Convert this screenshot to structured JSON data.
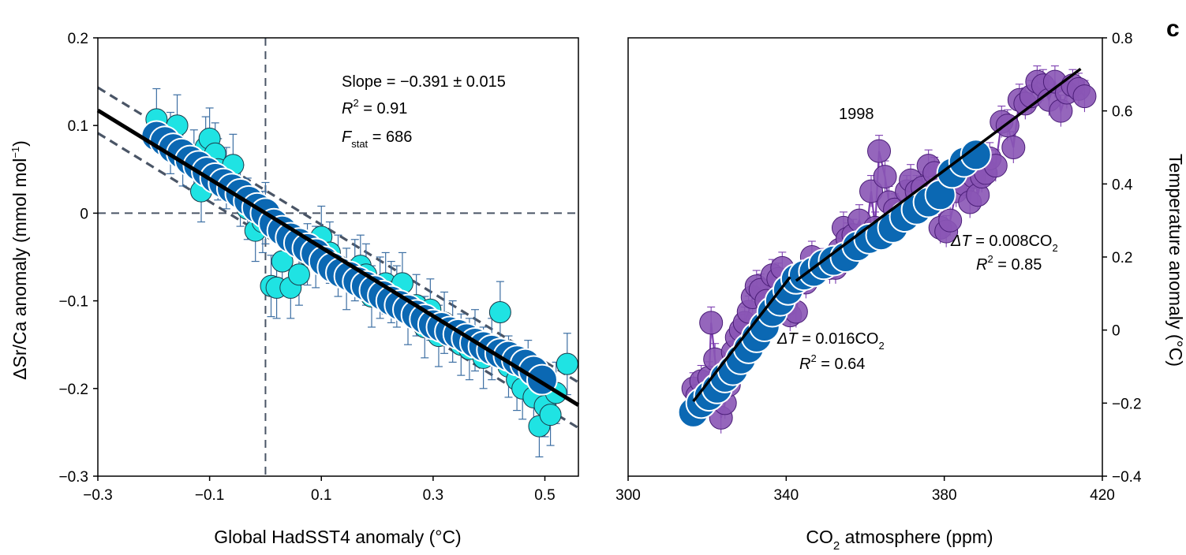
{
  "panel_label": "c",
  "colors": {
    "blue": "#0b68b3",
    "cyan": "#1fe3e3",
    "purple": "#8a55b5",
    "purple_line": "#7c3db0",
    "errorbar_blue": "#3d6fa3",
    "dash": "#4a5566",
    "fit": "#000000"
  },
  "chart_data": [
    {
      "type": "scatter",
      "xlabel": "Global HadSST4 anomaly (°C)",
      "ylabel": "ΔSr/Ca anomaly (mmol mol⁻¹)",
      "ylabel_parts": {
        "main": "ΔSr/Ca anomaly (mmol mol",
        "sup": "−1",
        "end": ")"
      },
      "xlim": [
        -0.3,
        0.56
      ],
      "ylim": [
        -0.3,
        0.2
      ],
      "xticks": [
        -0.3,
        -0.1,
        0.1,
        0.3,
        0.5
      ],
      "xtick_labels": [
        "−0.3",
        "−0.1",
        "0.1",
        "0.3",
        "0.5"
      ],
      "yticks": [
        -0.3,
        -0.2,
        -0.1,
        0,
        0.1,
        0.2
      ],
      "ytick_labels": [
        "−0.3",
        "−0.2",
        "−0.1",
        "0",
        "0.1",
        "0.2"
      ],
      "reference_lines": {
        "x": 0,
        "y": 0
      },
      "annotations": {
        "slope": "Slope = −0.391 ± 0.015",
        "r2_prefix": "R",
        "r2_sup": "2",
        "r2_value": " = 0.91",
        "f_prefix": "F",
        "f_sub": "stat",
        "f_value": " = 686"
      },
      "fit": {
        "slope": -0.391,
        "intercept": 0.0,
        "x_range": [
          -0.3,
          0.56
        ]
      },
      "confidence_band_offset": 0.026,
      "series": [
        {
          "name": "annual",
          "x": [
            -0.195,
            -0.17,
            -0.158,
            -0.148,
            -0.128,
            -0.115,
            -0.107,
            -0.1,
            -0.09,
            -0.085,
            -0.07,
            -0.058,
            -0.045,
            -0.032,
            -0.018,
            -0.005,
            0.0,
            0.01,
            0.02,
            0.03,
            0.045,
            0.06,
            0.075,
            0.09,
            0.1,
            0.115,
            0.13,
            0.145,
            0.16,
            0.17,
            0.18,
            0.19,
            0.205,
            0.215,
            0.225,
            0.235,
            0.245,
            0.255,
            0.27,
            0.285,
            0.295,
            0.31,
            0.32,
            0.335,
            0.35,
            0.365,
            0.375,
            0.39,
            0.405,
            0.42,
            0.435,
            0.45,
            0.46,
            0.47,
            0.48,
            0.49,
            0.5,
            0.51,
            0.52,
            0.54
          ],
          "y": [
            0.107,
            0.08,
            0.1,
            0.066,
            0.06,
            0.025,
            0.075,
            0.085,
            0.068,
            0.05,
            0.04,
            0.055,
            0.02,
            0.005,
            -0.02,
            -0.01,
            0.0,
            -0.083,
            -0.085,
            -0.055,
            -0.085,
            -0.07,
            -0.047,
            -0.05,
            -0.027,
            -0.045,
            -0.06,
            -0.075,
            -0.065,
            -0.06,
            -0.07,
            -0.095,
            -0.085,
            -0.08,
            -0.09,
            -0.095,
            -0.08,
            -0.115,
            -0.105,
            -0.13,
            -0.11,
            -0.14,
            -0.125,
            -0.135,
            -0.15,
            -0.155,
            -0.145,
            -0.165,
            -0.155,
            -0.113,
            -0.175,
            -0.19,
            -0.2,
            -0.18,
            -0.21,
            -0.243,
            -0.22,
            -0.23,
            -0.205,
            -0.172
          ],
          "err": 0.035
        },
        {
          "name": "smoothed",
          "x": [
            -0.195,
            -0.18,
            -0.165,
            -0.15,
            -0.135,
            -0.12,
            -0.105,
            -0.09,
            -0.075,
            -0.06,
            -0.045,
            -0.03,
            -0.015,
            0.0,
            0.015,
            0.03,
            0.045,
            0.06,
            0.075,
            0.09,
            0.105,
            0.12,
            0.135,
            0.15,
            0.165,
            0.18,
            0.195,
            0.21,
            0.225,
            0.24,
            0.255,
            0.27,
            0.285,
            0.3,
            0.315,
            0.33,
            0.345,
            0.36,
            0.375,
            0.39,
            0.405,
            0.42,
            0.435,
            0.45,
            0.465,
            0.48,
            0.495
          ],
          "y": [
            0.088,
            0.082,
            0.074,
            0.068,
            0.06,
            0.054,
            0.047,
            0.04,
            0.034,
            0.028,
            0.022,
            0.014,
            0.006,
            0.0,
            -0.012,
            -0.02,
            -0.028,
            -0.034,
            -0.04,
            -0.046,
            -0.055,
            -0.062,
            -0.068,
            -0.072,
            -0.078,
            -0.083,
            -0.088,
            -0.094,
            -0.1,
            -0.105,
            -0.11,
            -0.116,
            -0.121,
            -0.127,
            -0.13,
            -0.135,
            -0.138,
            -0.143,
            -0.148,
            -0.152,
            -0.156,
            -0.16,
            -0.163,
            -0.168,
            -0.172,
            -0.18,
            -0.19
          ]
        }
      ]
    },
    {
      "type": "scatter",
      "xlabel_parts": {
        "pre": "CO",
        "sub": "2",
        "post": " atmosphere (ppm)"
      },
      "xlabel": "CO2 atmosphere (ppm)",
      "ylabel": "Temperature anomaly (°C)",
      "xlim": [
        300,
        420
      ],
      "ylim": [
        -0.4,
        0.8
      ],
      "xticks": [
        300,
        340,
        380,
        420
      ],
      "xtick_labels": [
        "300",
        "340",
        "380",
        "420"
      ],
      "yticks": [
        -0.4,
        -0.2,
        0,
        0.2,
        0.4,
        0.6,
        0.8
      ],
      "ytick_labels": [
        "−0.4",
        "−0.2",
        "0",
        "0.2",
        "0.4",
        "0.6",
        "0.8"
      ],
      "annotations": {
        "year_1998": "1998",
        "fit_low": {
          "prefix": "ΔT",
          "eq": " = 0.016CO",
          "sub": "2",
          "r2_prefix": "R",
          "r2_sup": "2",
          "r2_value": " = 0.64"
        },
        "fit_high": {
          "prefix": "ΔT",
          "eq": " = 0.008CO",
          "sub": "2",
          "r2_prefix": "R",
          "r2_sup": "2",
          "r2_value": " = 0.85"
        }
      },
      "fit_segments": [
        {
          "x": [
            316.5,
            341
          ],
          "y": [
            -0.195,
            0.145
          ]
        },
        {
          "x": [
            342.5,
            414.5
          ],
          "y": [
            0.135,
            0.715
          ]
        }
      ],
      "series": [
        {
          "name": "annual",
          "x": [
            316.5,
            317.5,
            318.5,
            319.5,
            320.5,
            321,
            322,
            323,
            323.5,
            324.5,
            325.5,
            326.5,
            327.5,
            328.5,
            329.5,
            330.5,
            331.5,
            332.5,
            333.5,
            335,
            336.5,
            338,
            339,
            340,
            341,
            342.5,
            343.5,
            345,
            346.5,
            348,
            349.5,
            351,
            352.5,
            353.5,
            354.5,
            355.5,
            357,
            358.5,
            360,
            361.5,
            362.5,
            363.5,
            365,
            366,
            367.5,
            369,
            370.5,
            371.5,
            373,
            374.5,
            376,
            377.5,
            379,
            380.5,
            381.5,
            383,
            385,
            386.5,
            387.5,
            388.5,
            389.5,
            390.5,
            391.5,
            393,
            394.5,
            396,
            397.5,
            399,
            400.5,
            402,
            403.5,
            405,
            406.5,
            408,
            409.5,
            411,
            412.5,
            414,
            415.5
          ],
          "y": [
            -0.16,
            -0.18,
            -0.14,
            -0.2,
            -0.13,
            0.02,
            -0.08,
            -0.15,
            -0.24,
            -0.2,
            -0.15,
            -0.06,
            -0.02,
            0.0,
            0.02,
            0.05,
            0.09,
            0.12,
            0.11,
            0.08,
            0.15,
            0.14,
            0.17,
            0.07,
            0.04,
            0.05,
            0.13,
            0.13,
            0.2,
            0.17,
            0.18,
            0.17,
            0.17,
            0.22,
            0.28,
            0.25,
            0.26,
            0.3,
            0.24,
            0.38,
            0.28,
            0.49,
            0.42,
            0.35,
            0.33,
            0.3,
            0.38,
            0.41,
            0.38,
            0.39,
            0.45,
            0.43,
            0.28,
            0.27,
            0.3,
            0.38,
            0.4,
            0.35,
            0.42,
            0.37,
            0.42,
            0.43,
            0.47,
            0.45,
            0.57,
            0.56,
            0.5,
            0.63,
            0.62,
            0.64,
            0.68,
            0.67,
            0.63,
            0.68,
            0.6,
            0.65,
            0.67,
            0.66,
            0.64
          ]
        },
        {
          "name": "smoothed",
          "x": [
            316.5,
            318.5,
            320.5,
            322.5,
            324.5,
            326.5,
            328.5,
            330.5,
            332.5,
            334.5,
            336.5,
            338.5,
            340.5,
            342.5,
            344.5,
            347,
            349.5,
            352,
            355,
            358,
            361,
            364,
            367,
            370,
            373,
            376,
            379,
            382,
            385,
            388
          ],
          "y": [
            -0.225,
            -0.2,
            -0.18,
            -0.16,
            -0.13,
            -0.11,
            -0.08,
            -0.05,
            -0.02,
            0.01,
            0.05,
            0.08,
            0.11,
            0.14,
            0.15,
            0.16,
            0.18,
            0.19,
            0.2,
            0.23,
            0.25,
            0.26,
            0.28,
            0.31,
            0.33,
            0.35,
            0.37,
            0.43,
            0.46,
            0.48
          ]
        }
      ]
    }
  ]
}
